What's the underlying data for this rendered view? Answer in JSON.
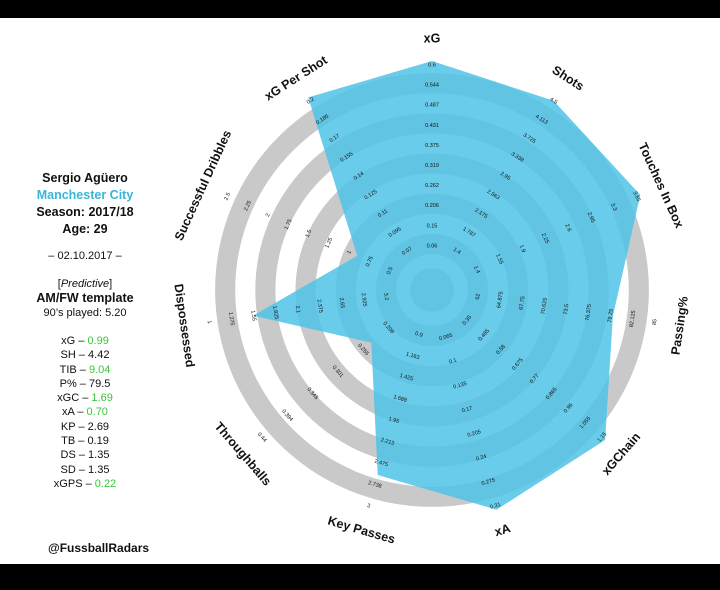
{
  "player": {
    "name": "Sergio Agüero",
    "team": "Manchester City",
    "season": "Season: 2017/18",
    "age": "Age: 29",
    "date": "– 02.10.2017 –",
    "predictive": "Predictive",
    "template": "AM/FW template",
    "played": "90’s played: 5.20"
  },
  "stats": [
    {
      "label": "xG",
      "value": "0.99",
      "highlight": true
    },
    {
      "label": "SH",
      "value": "4.42",
      "highlight": false
    },
    {
      "label": "TIB",
      "value": "9.04",
      "highlight": true
    },
    {
      "label": "P%",
      "value": "79.5",
      "highlight": false
    },
    {
      "label": "xGC",
      "value": "1.69",
      "highlight": true
    },
    {
      "label": "xA",
      "value": "0.70",
      "highlight": true
    },
    {
      "label": "KP",
      "value": "2.69",
      "highlight": false
    },
    {
      "label": "TB",
      "value": "0.19",
      "highlight": false
    },
    {
      "label": "DS",
      "value": "1.35",
      "highlight": false
    },
    {
      "label": "SD",
      "value": "1.35",
      "highlight": false
    },
    {
      "label": "xGPS",
      "value": "0.22",
      "highlight": true
    }
  ],
  "handle": "@FussballRadars",
  "colors": {
    "fill": "#4fc3e6",
    "ring_gray": "#c9c9c9",
    "highlight": "#3cc43c",
    "team": "#39b6da"
  },
  "chart_data": {
    "type": "radar",
    "axes": [
      {
        "name": "xG",
        "ticks": [
          "0.06",
          "0.15",
          "0.206",
          "0.262",
          "0.319",
          "0.375",
          "0.431",
          "0.487",
          "0.544",
          "0.6"
        ],
        "value": 0.99,
        "fraction": 1.0
      },
      {
        "name": "Shots",
        "ticks": [
          "1.4",
          "1.787",
          "2.175",
          "2.563",
          "2.95",
          "3.338",
          "3.725",
          "4.113",
          "4.5"
        ],
        "value": 4.42,
        "fraction": 0.98
      },
      {
        "name": "Touches In Box",
        "ticks": [
          "1.4",
          "1.55",
          "1.9",
          "2.25",
          "2.6",
          "2.95",
          "3.3",
          "3.65"
        ],
        "value": 9.04,
        "fraction": 1.0
      },
      {
        "name": "Passing%",
        "ticks": [
          "62",
          "64.875",
          "67.75",
          "70.625",
          "73.5",
          "76.375",
          "79.25",
          "82.125",
          "85"
        ],
        "value": 79.5,
        "fraction": 0.77
      },
      {
        "name": "xGChain",
        "ticks": [
          "0.35",
          "0.485",
          "0.58",
          "0.675",
          "0.77",
          "0.865",
          "0.96",
          "1.055",
          "1.15"
        ],
        "value": 1.69,
        "fraction": 1.0
      },
      {
        "name": "xA",
        "ticks": [
          "0.065",
          "0.1",
          "0.135",
          "0.17",
          "0.205",
          "0.24",
          "0.275",
          "0.31"
        ],
        "value": 0.7,
        "fraction": 1.0
      },
      {
        "name": "Key Passes",
        "ticks": [
          "0.9",
          "1.163",
          "1.425",
          "1.688",
          "1.95",
          "2.213",
          "2.475",
          "2.738",
          "3"
        ],
        "value": 2.69,
        "fraction": 0.82
      },
      {
        "name": "Throughballs",
        "ticks": [
          "0.209",
          "0.255",
          "0.301",
          "0.348",
          "0.394",
          "0.44"
        ],
        "value": 0.19,
        "fraction": 0.26
      },
      {
        "name": "Dispossessed",
        "ticks": [
          "3.2",
          "2.925",
          "2.65",
          "2.375",
          "2.1",
          "1.825",
          "1.55",
          "1.275",
          "1"
        ],
        "value": 1.35,
        "fraction": 0.76
      },
      {
        "name": "Successful Dribbles",
        "ticks": [
          "0.5",
          "0.75",
          "1",
          "1.25",
          "1.5",
          "1.75",
          "2",
          "2.25",
          "2.5"
        ],
        "value": 1.35,
        "fraction": 0.27
      },
      {
        "name": "xG Per Shot",
        "ticks": [
          "0.07",
          "0.095",
          "0.11",
          "0.125",
          "0.14",
          "0.155",
          "0.17",
          "0.185",
          "0.2"
        ],
        "value": 0.22,
        "fraction": 1.0
      }
    ]
  }
}
